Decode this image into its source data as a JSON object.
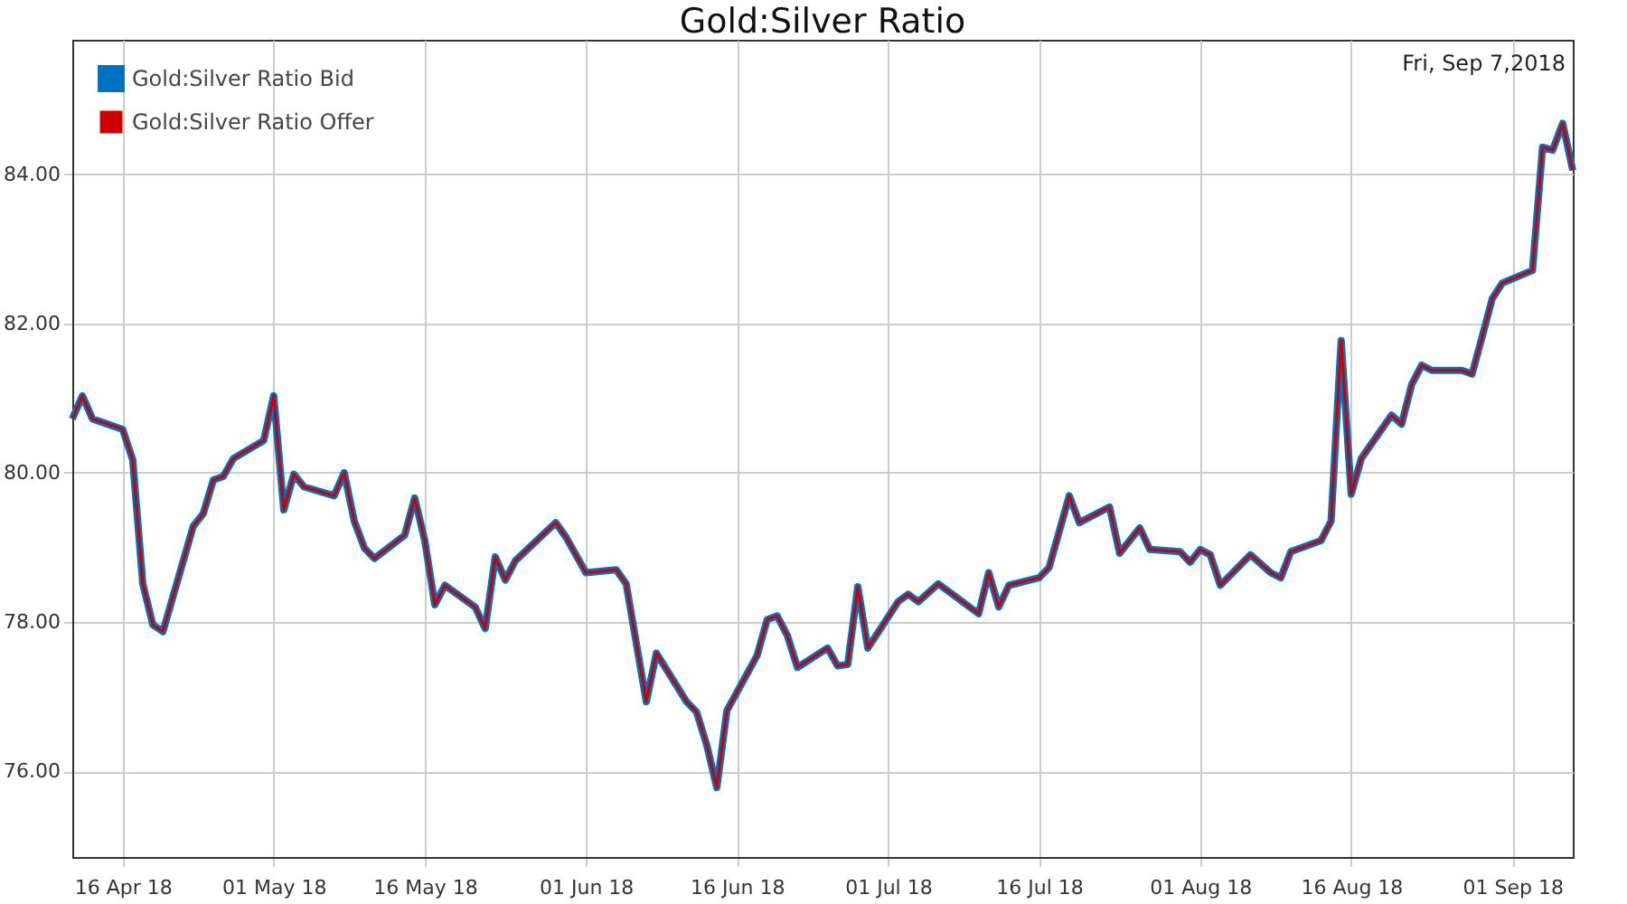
{
  "chart_data": {
    "type": "line",
    "title": "Gold:Silver Ratio",
    "annotations": [
      "Fri, Sep 7,2018"
    ],
    "x": [
      "2018-04-11",
      "2018-04-12",
      "2018-04-13",
      "2018-04-16",
      "2018-04-17",
      "2018-04-18",
      "2018-04-19",
      "2018-04-20",
      "2018-04-23",
      "2018-04-24",
      "2018-04-25",
      "2018-04-26",
      "2018-04-27",
      "2018-04-30",
      "2018-05-01",
      "2018-05-02",
      "2018-05-03",
      "2018-05-04",
      "2018-05-07",
      "2018-05-08",
      "2018-05-09",
      "2018-05-10",
      "2018-05-11",
      "2018-05-14",
      "2018-05-15",
      "2018-05-16",
      "2018-05-17",
      "2018-05-18",
      "2018-05-21",
      "2018-05-22",
      "2018-05-23",
      "2018-05-24",
      "2018-05-25",
      "2018-05-29",
      "2018-05-30",
      "2018-05-31",
      "2018-06-01",
      "2018-06-04",
      "2018-06-05",
      "2018-06-07",
      "2018-06-08",
      "2018-06-11",
      "2018-06-12",
      "2018-06-13",
      "2018-06-14",
      "2018-06-15",
      "2018-06-18",
      "2018-06-19",
      "2018-06-20",
      "2018-06-21",
      "2018-06-22",
      "2018-06-25",
      "2018-06-26",
      "2018-06-27",
      "2018-06-28",
      "2018-06-29",
      "2018-07-02",
      "2018-07-03",
      "2018-07-04",
      "2018-07-06",
      "2018-07-10",
      "2018-07-11",
      "2018-07-12",
      "2018-07-13",
      "2018-07-16",
      "2018-07-17",
      "2018-07-19",
      "2018-07-20",
      "2018-07-23",
      "2018-07-24",
      "2018-07-26",
      "2018-07-27",
      "2018-07-30",
      "2018-07-31",
      "2018-08-01",
      "2018-08-02",
      "2018-08-03",
      "2018-08-06",
      "2018-08-08",
      "2018-08-09",
      "2018-08-10",
      "2018-08-13",
      "2018-08-14",
      "2018-08-15",
      "2018-08-16",
      "2018-08-17",
      "2018-08-20",
      "2018-08-21",
      "2018-08-22",
      "2018-08-23",
      "2018-08-24",
      "2018-08-27",
      "2018-08-28",
      "2018-08-29",
      "2018-08-30",
      "2018-08-31",
      "2018-09-03",
      "2018-09-04",
      "2018-09-05",
      "2018-09-06",
      "2018-09-07"
    ],
    "series": [
      {
        "name": "Gold:Silver Ratio Bid",
        "color": "#0070c0",
        "values": [
          80.72,
          81.03,
          80.72,
          80.58,
          80.17,
          78.51,
          77.96,
          77.87,
          79.28,
          79.45,
          79.9,
          79.95,
          80.19,
          80.43,
          81.03,
          79.5,
          79.98,
          79.81,
          79.69,
          80.0,
          79.35,
          78.99,
          78.85,
          79.16,
          79.66,
          79.09,
          78.23,
          78.49,
          78.2,
          77.91,
          78.87,
          78.56,
          78.82,
          79.33,
          79.14,
          78.9,
          78.66,
          78.7,
          78.51,
          76.93,
          77.58,
          76.93,
          76.79,
          76.35,
          75.78,
          76.81,
          77.55,
          78.03,
          78.08,
          77.82,
          77.39,
          77.65,
          77.41,
          77.43,
          78.47,
          77.65,
          78.27,
          78.37,
          78.27,
          78.51,
          78.11,
          78.66,
          78.2,
          78.49,
          78.59,
          78.73,
          79.69,
          79.33,
          79.54,
          78.92,
          79.26,
          78.97,
          78.94,
          78.8,
          78.97,
          78.9,
          78.49,
          78.9,
          78.66,
          78.59,
          78.94,
          79.09,
          79.35,
          81.77,
          79.71,
          80.19,
          80.77,
          80.65,
          81.18,
          81.44,
          81.37,
          81.37,
          81.32,
          81.82,
          82.33,
          82.54,
          82.71,
          84.36,
          84.32,
          84.68,
          84.05
        ]
      },
      {
        "name": "Gold:Silver Ratio Offer",
        "color": "#cc0000",
        "values": [
          80.72,
          81.03,
          80.72,
          80.58,
          80.17,
          78.51,
          77.96,
          77.87,
          79.28,
          79.45,
          79.9,
          79.95,
          80.19,
          80.43,
          81.03,
          79.5,
          79.98,
          79.81,
          79.69,
          80.0,
          79.35,
          78.99,
          78.85,
          79.16,
          79.66,
          79.09,
          78.23,
          78.49,
          78.2,
          77.91,
          78.87,
          78.56,
          78.82,
          79.33,
          79.14,
          78.9,
          78.66,
          78.7,
          78.51,
          76.93,
          77.58,
          76.93,
          76.79,
          76.35,
          75.78,
          76.81,
          77.55,
          78.03,
          78.08,
          77.82,
          77.39,
          77.65,
          77.41,
          77.43,
          78.47,
          77.65,
          78.27,
          78.37,
          78.27,
          78.51,
          78.11,
          78.66,
          78.2,
          78.49,
          78.59,
          78.73,
          79.69,
          79.33,
          79.54,
          78.92,
          79.26,
          78.97,
          78.94,
          78.8,
          78.97,
          78.9,
          78.49,
          78.9,
          78.66,
          78.59,
          78.94,
          79.09,
          79.35,
          81.77,
          79.71,
          80.19,
          80.77,
          80.65,
          81.18,
          81.44,
          81.37,
          81.37,
          81.32,
          81.82,
          82.33,
          82.54,
          82.71,
          84.36,
          84.32,
          84.68,
          84.05
        ]
      }
    ],
    "xlim": [
      "2018-04-11",
      "2018-09-07"
    ],
    "xticks": [
      {
        "value": "2018-04-16",
        "label": "16 Apr 18"
      },
      {
        "value": "2018-05-01",
        "label": "01 May 18"
      },
      {
        "value": "2018-05-16",
        "label": "16 May 18"
      },
      {
        "value": "2018-06-01",
        "label": "01 Jun 18"
      },
      {
        "value": "2018-06-16",
        "label": "16 Jun 18"
      },
      {
        "value": "2018-07-01",
        "label": "01 Jul 18"
      },
      {
        "value": "2018-07-16",
        "label": "16 Jul 18"
      },
      {
        "value": "2018-08-01",
        "label": "01 Aug 18"
      },
      {
        "value": "2018-08-16",
        "label": "16 Aug 18"
      },
      {
        "value": "2018-09-01",
        "label": "01 Sep 18"
      }
    ],
    "ylim": [
      74.85,
      85.8
    ],
    "yticks": [
      {
        "value": 76,
        "label": "76.00"
      },
      {
        "value": 78,
        "label": "78.00"
      },
      {
        "value": 80,
        "label": "80.00"
      },
      {
        "value": 82,
        "label": "82.00"
      },
      {
        "value": 84,
        "label": "84.00"
      }
    ],
    "grid": true,
    "legend": "top left",
    "line_style": "solid"
  }
}
